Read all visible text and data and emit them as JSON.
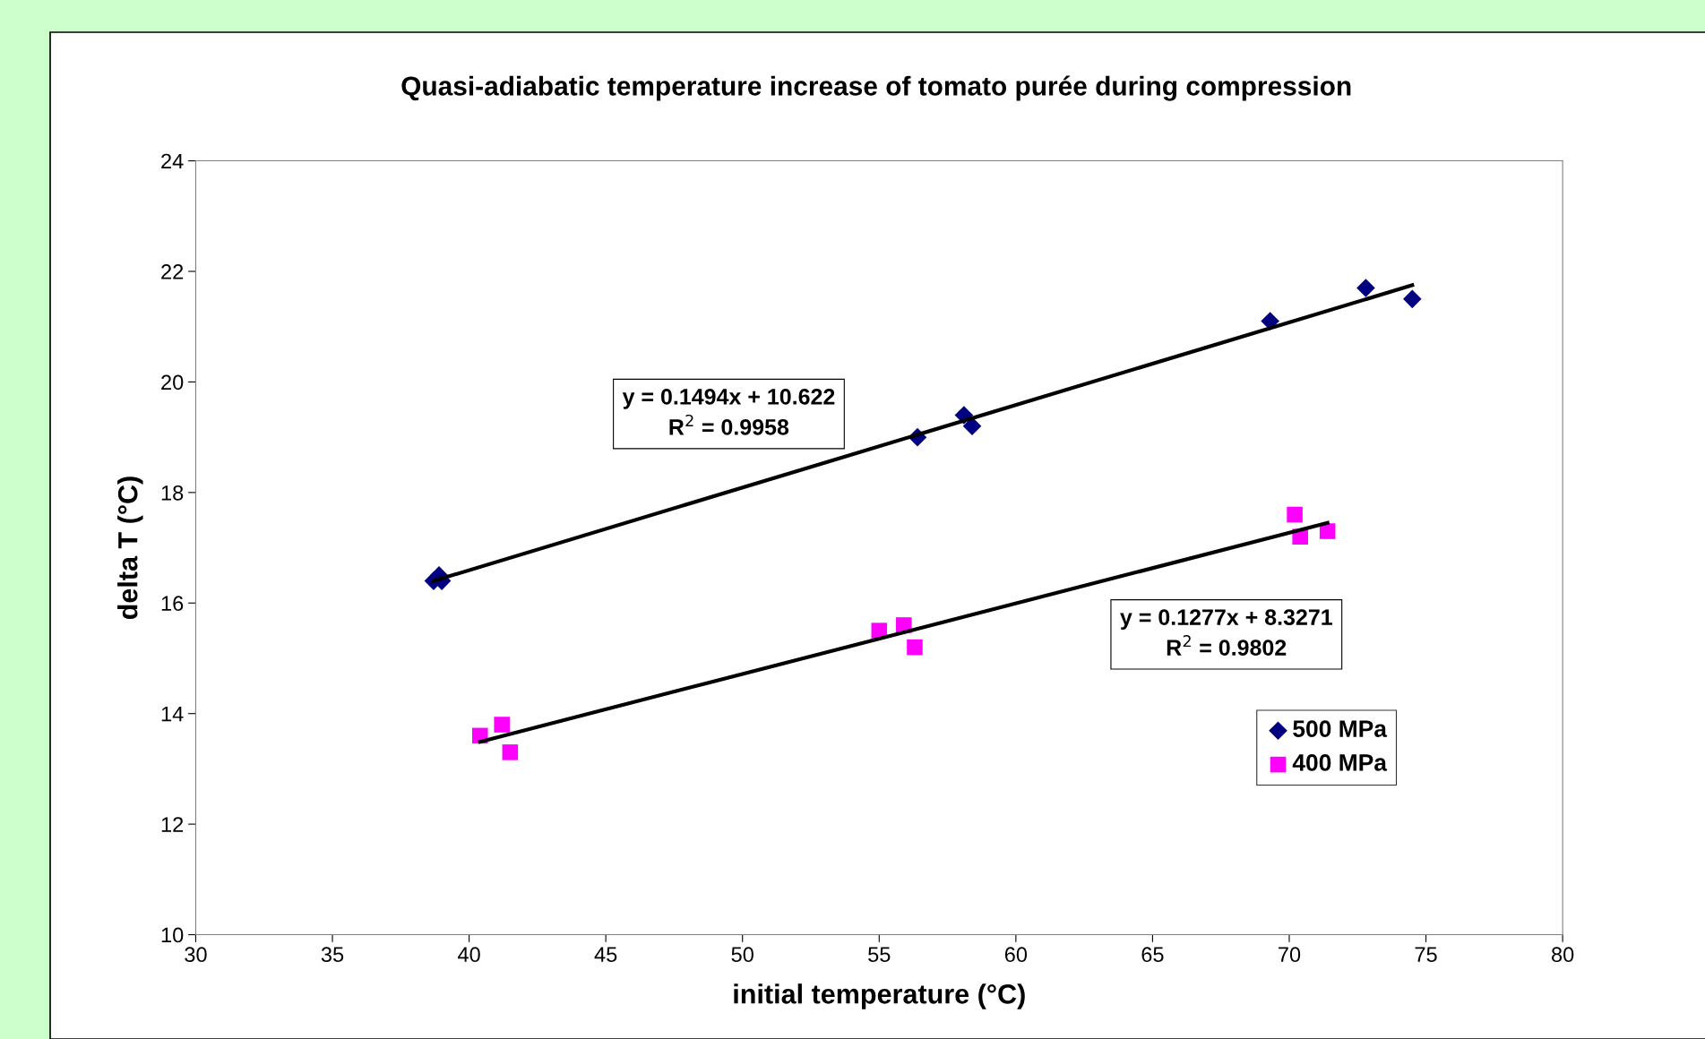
{
  "chart_data": {
    "type": "scatter",
    "title": "Quasi-adiabatic temperature increase of tomato purée during compression",
    "xlabel": "initial temperature (°C)",
    "ylabel": "delta T (°C)",
    "xlim": [
      30,
      80
    ],
    "xticks": [
      30,
      35,
      40,
      45,
      50,
      55,
      60,
      65,
      70,
      75,
      80
    ],
    "ylim": [
      10,
      24
    ],
    "yticks": [
      10,
      12,
      14,
      16,
      18,
      20,
      22,
      24
    ],
    "grid": false,
    "legend": "right",
    "series": [
      {
        "name": "500 MPa",
        "marker": "diamond",
        "color": "#000080",
        "x": [
          38.7,
          38.9,
          39.0,
          56.4,
          58.1,
          58.4,
          69.3,
          72.8,
          74.5
        ],
        "values": [
          16.4,
          16.5,
          16.4,
          19.0,
          19.4,
          19.2,
          21.1,
          21.7,
          21.5
        ]
      },
      {
        "name": "400 MPa",
        "marker": "square",
        "color": "#ff00ff",
        "x": [
          40.4,
          41.2,
          41.5,
          55.0,
          55.9,
          56.3,
          70.2,
          70.4,
          71.4
        ],
        "values": [
          13.6,
          13.8,
          13.3,
          15.5,
          15.6,
          15.2,
          17.6,
          17.2,
          17.3
        ]
      },
      {
        "type": "line",
        "color": "#000000",
        "x": [
          38.7,
          74.5
        ],
        "values": [
          16.4,
          21.75
        ]
      },
      {
        "type": "line",
        "color": "#000000",
        "x": [
          40.4,
          71.4
        ],
        "values": [
          13.49,
          17.45
        ]
      }
    ],
    "annotations": [
      "y = 0.1494x + 10.622\nR$^{2}$ = 0.9958",
      "y = 0.1277x + 8.3271\nR$^{2}$ = 0.9802"
    ]
  }
}
